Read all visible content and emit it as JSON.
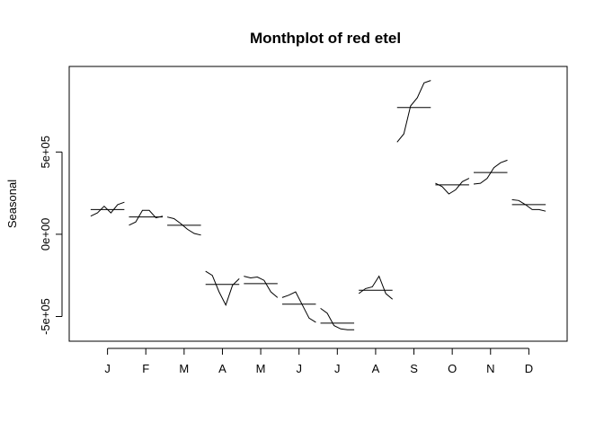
{
  "chart_data": {
    "type": "line",
    "title": "Monthplot of red etel",
    "xlabel": "",
    "ylabel": "Seasonal",
    "ylim": [
      -650000,
      1020000
    ],
    "y_ticks": [
      {
        "value": -500000,
        "label": "-5e+05"
      },
      {
        "value": 0,
        "label": "0e+00"
      },
      {
        "value": 500000,
        "label": "5e+05"
      }
    ],
    "grid": false,
    "legend": "none",
    "line_color": "#000000",
    "months": [
      {
        "label": "J",
        "mean": 150000,
        "values": [
          110000,
          130000,
          170000,
          130000,
          180000,
          195000
        ]
      },
      {
        "label": "F",
        "mean": 105000,
        "values": [
          55000,
          75000,
          145000,
          145000,
          100000,
          110000
        ]
      },
      {
        "label": "M",
        "mean": 55000,
        "values": [
          105000,
          95000,
          65000,
          30000,
          5000,
          -5000
        ]
      },
      {
        "label": "A",
        "mean": -305000,
        "values": [
          -225000,
          -250000,
          -350000,
          -430000,
          -310000,
          -270000
        ]
      },
      {
        "label": "M",
        "mean": -300000,
        "values": [
          -255000,
          -265000,
          -260000,
          -280000,
          -350000,
          -385000
        ]
      },
      {
        "label": "J",
        "mean": -425000,
        "values": [
          -385000,
          -370000,
          -350000,
          -430000,
          -510000,
          -535000
        ]
      },
      {
        "label": "J",
        "mean": -540000,
        "values": [
          -450000,
          -480000,
          -555000,
          -575000,
          -580000,
          -580000
        ]
      },
      {
        "label": "A",
        "mean": -340000,
        "values": [
          -360000,
          -330000,
          -320000,
          -255000,
          -360000,
          -395000
        ]
      },
      {
        "label": "S",
        "mean": 770000,
        "values": [
          560000,
          610000,
          780000,
          830000,
          920000,
          935000
        ]
      },
      {
        "label": "O",
        "mean": 300000,
        "values": [
          310000,
          290000,
          245000,
          270000,
          320000,
          340000
        ]
      },
      {
        "label": "N",
        "mean": 375000,
        "values": [
          305000,
          310000,
          340000,
          405000,
          435000,
          450000
        ]
      },
      {
        "label": "D",
        "mean": 180000,
        "values": [
          210000,
          205000,
          180000,
          150000,
          150000,
          140000
        ]
      }
    ]
  }
}
